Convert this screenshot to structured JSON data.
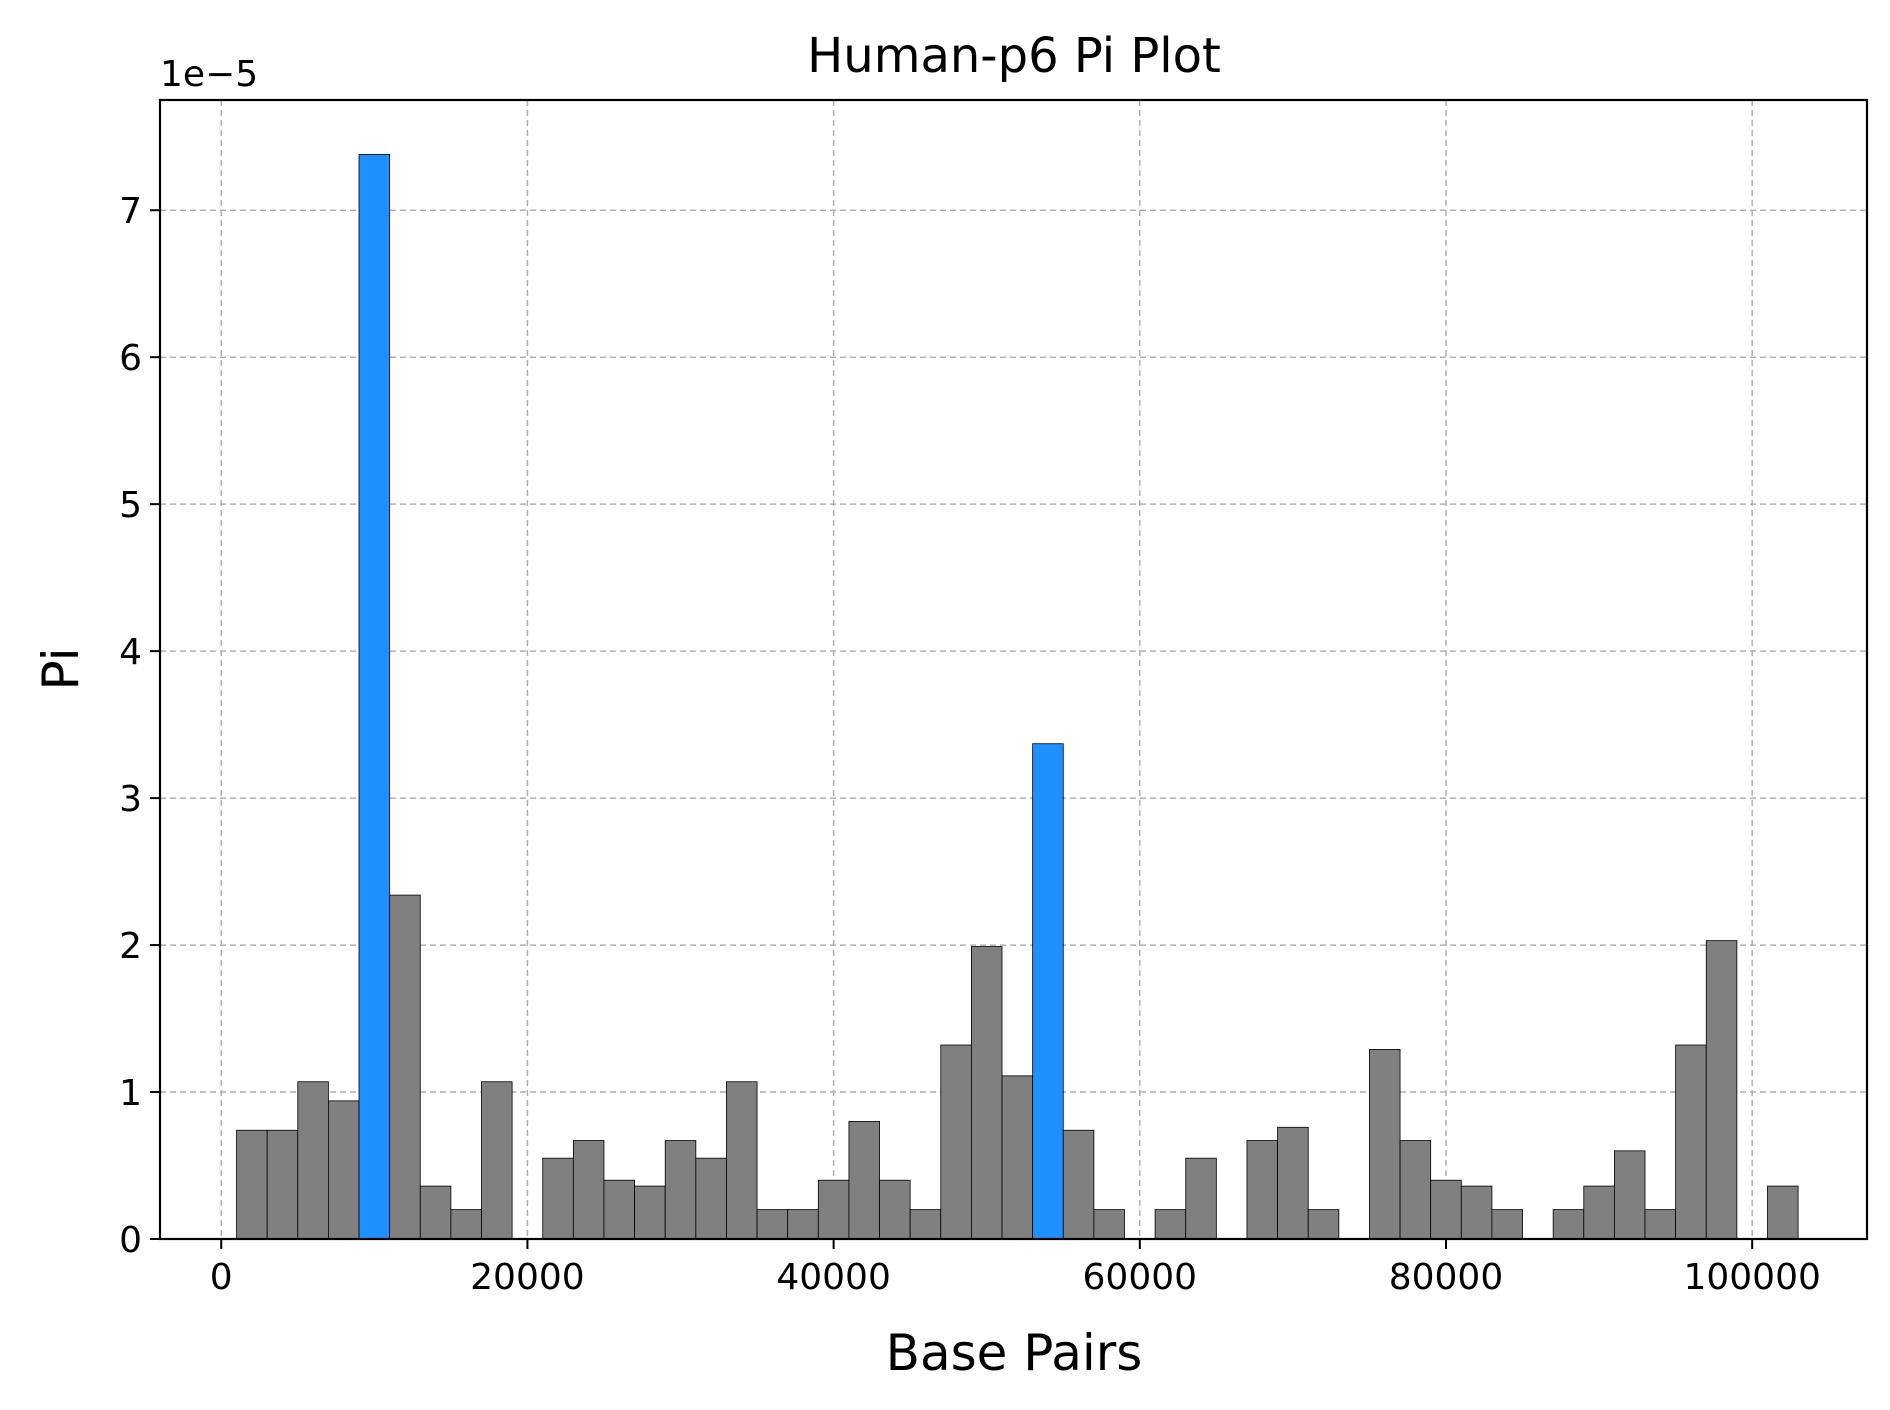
{
  "chart_data": {
    "type": "bar",
    "title": "Human-p6 Pi Plot",
    "xlabel": "Base Pairs",
    "ylabel": "Pi",
    "y_offset_label": "1e−5",
    "xlim": [
      -4000,
      107500
    ],
    "ylim": [
      0,
      7.75
    ],
    "y_scale_exponent": -5,
    "bin_width": 2000,
    "grid": true,
    "x_ticks": [
      0,
      20000,
      40000,
      60000,
      80000,
      100000
    ],
    "x_tick_labels": [
      "0",
      "20000",
      "40000",
      "60000",
      "80000",
      "100000"
    ],
    "y_ticks": [
      0,
      1,
      2,
      3,
      4,
      5,
      6,
      7
    ],
    "y_tick_labels": [
      "0",
      "1",
      "2",
      "3",
      "4",
      "5",
      "6",
      "7"
    ],
    "colors": {
      "normal": "#808080",
      "highlight": "#1e90ff"
    },
    "bins": [
      {
        "x": 2000,
        "value": 0.74,
        "highlight": false
      },
      {
        "x": 4000,
        "value": 0.74,
        "highlight": false
      },
      {
        "x": 6000,
        "value": 1.07,
        "highlight": false
      },
      {
        "x": 8000,
        "value": 0.94,
        "highlight": false
      },
      {
        "x": 10000,
        "value": 7.38,
        "highlight": true
      },
      {
        "x": 12000,
        "value": 2.34,
        "highlight": false
      },
      {
        "x": 14000,
        "value": 0.36,
        "highlight": false
      },
      {
        "x": 16000,
        "value": 0.2,
        "highlight": false
      },
      {
        "x": 18000,
        "value": 1.07,
        "highlight": false
      },
      {
        "x": 22000,
        "value": 0.55,
        "highlight": false
      },
      {
        "x": 24000,
        "value": 0.67,
        "highlight": false
      },
      {
        "x": 26000,
        "value": 0.4,
        "highlight": false
      },
      {
        "x": 28000,
        "value": 0.36,
        "highlight": false
      },
      {
        "x": 30000,
        "value": 0.67,
        "highlight": false
      },
      {
        "x": 32000,
        "value": 0.55,
        "highlight": false
      },
      {
        "x": 34000,
        "value": 1.07,
        "highlight": false
      },
      {
        "x": 36000,
        "value": 0.2,
        "highlight": false
      },
      {
        "x": 38000,
        "value": 0.2,
        "highlight": false
      },
      {
        "x": 40000,
        "value": 0.4,
        "highlight": false
      },
      {
        "x": 42000,
        "value": 0.8,
        "highlight": false
      },
      {
        "x": 44000,
        "value": 0.4,
        "highlight": false
      },
      {
        "x": 46000,
        "value": 0.2,
        "highlight": false
      },
      {
        "x": 48000,
        "value": 1.32,
        "highlight": false
      },
      {
        "x": 50000,
        "value": 1.99,
        "highlight": false
      },
      {
        "x": 52000,
        "value": 1.11,
        "highlight": false
      },
      {
        "x": 54000,
        "value": 3.37,
        "highlight": true
      },
      {
        "x": 56000,
        "value": 0.74,
        "highlight": false
      },
      {
        "x": 58000,
        "value": 0.2,
        "highlight": false
      },
      {
        "x": 62000,
        "value": 0.2,
        "highlight": false
      },
      {
        "x": 64000,
        "value": 0.55,
        "highlight": false
      },
      {
        "x": 68000,
        "value": 0.67,
        "highlight": false
      },
      {
        "x": 70000,
        "value": 0.76,
        "highlight": false
      },
      {
        "x": 72000,
        "value": 0.2,
        "highlight": false
      },
      {
        "x": 76000,
        "value": 1.29,
        "highlight": false
      },
      {
        "x": 78000,
        "value": 0.67,
        "highlight": false
      },
      {
        "x": 80000,
        "value": 0.4,
        "highlight": false
      },
      {
        "x": 82000,
        "value": 0.36,
        "highlight": false
      },
      {
        "x": 84000,
        "value": 0.2,
        "highlight": false
      },
      {
        "x": 88000,
        "value": 0.2,
        "highlight": false
      },
      {
        "x": 90000,
        "value": 0.36,
        "highlight": false
      },
      {
        "x": 92000,
        "value": 0.6,
        "highlight": false
      },
      {
        "x": 94000,
        "value": 0.2,
        "highlight": false
      },
      {
        "x": 96000,
        "value": 1.32,
        "highlight": false
      },
      {
        "x": 98000,
        "value": 2.03,
        "highlight": false
      },
      {
        "x": 102000,
        "value": 0.36,
        "highlight": false
      }
    ]
  }
}
